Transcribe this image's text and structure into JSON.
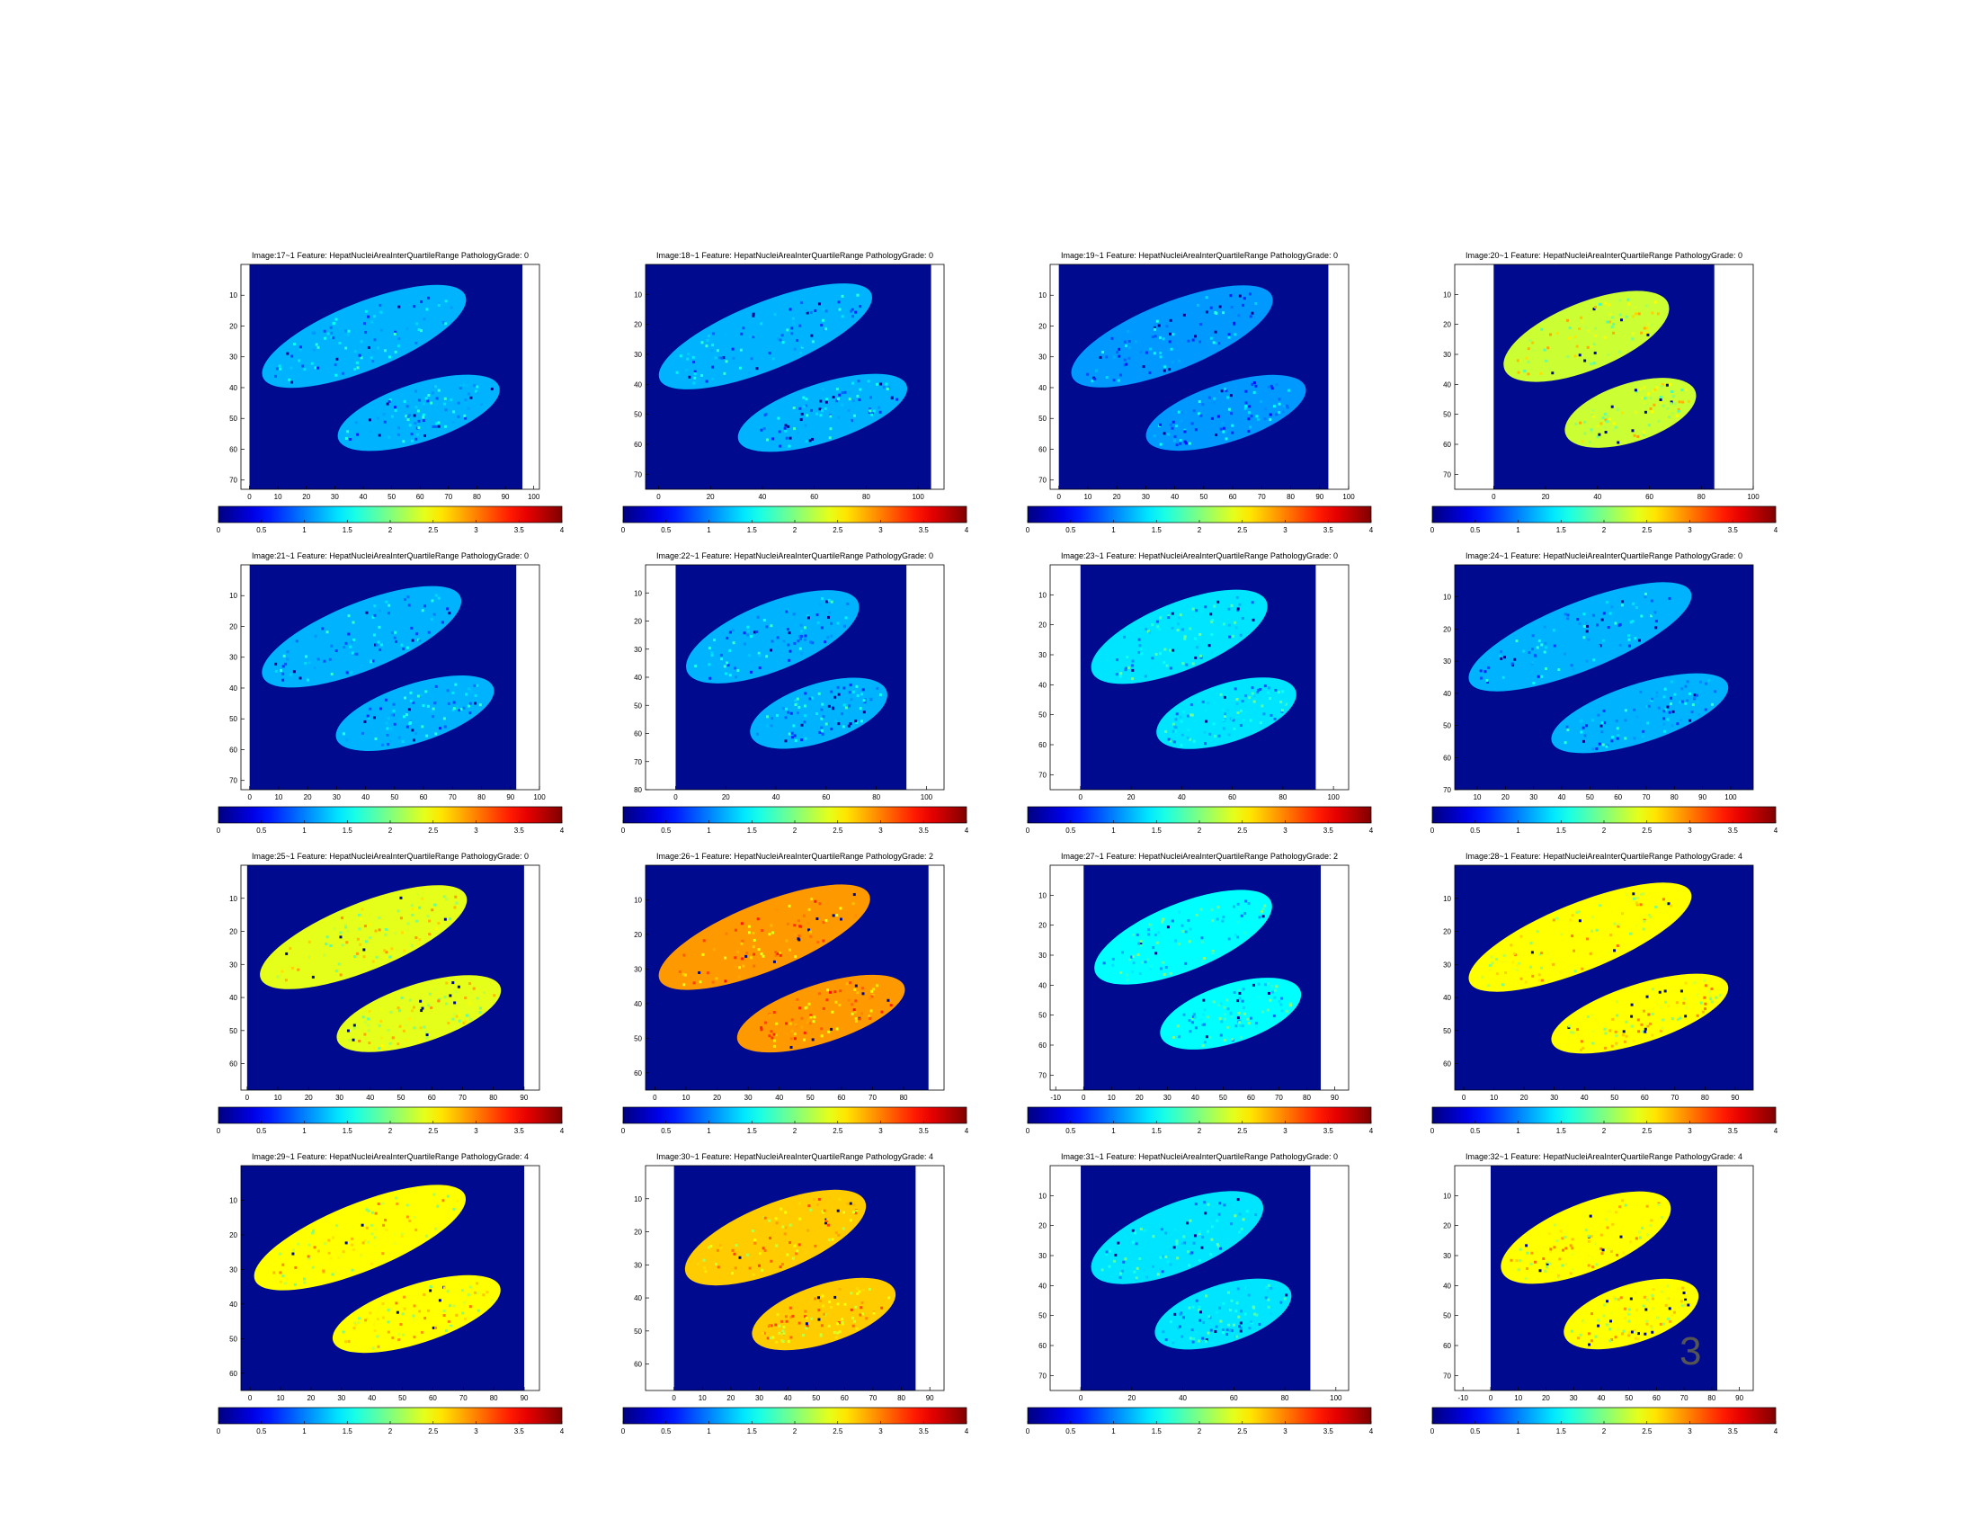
{
  "page_number": "3",
  "colors": {
    "background_blue": "#000a8f",
    "axes": "#000000"
  },
  "colorbar_ticks": [
    "0",
    "0.5",
    "1",
    "1.5",
    "2",
    "2.5",
    "3",
    "3.5",
    "4"
  ],
  "chart_data": [
    {
      "type": "heatmap",
      "title": "Image:17~1     Feature: HepatNucleiAreaInterQuartileRange  PathologyGrade: 0",
      "x_ticks": [
        "0",
        "10",
        "20",
        "30",
        "40",
        "50",
        "60",
        "70",
        "80",
        "90",
        "100"
      ],
      "y_ticks": [
        "10",
        "20",
        "30",
        "40",
        "50",
        "60",
        "70"
      ],
      "xlim": [
        -3,
        102
      ],
      "ylim": [
        0,
        73
      ],
      "data_xlim": [
        0,
        96
      ],
      "clim": [
        0,
        4
      ],
      "pathology_grade": 0,
      "dominant_value": 1.2
    },
    {
      "type": "heatmap",
      "title": "Image:18~1     Feature: HepatNucleiAreaInterQuartileRange  PathologyGrade: 0",
      "x_ticks": [
        "0",
        "20",
        "40",
        "60",
        "80",
        "100"
      ],
      "y_ticks": [
        "10",
        "20",
        "30",
        "40",
        "50",
        "60",
        "70"
      ],
      "xlim": [
        -5,
        110
      ],
      "ylim": [
        0,
        75
      ],
      "data_xlim": [
        -5,
        105
      ],
      "clim": [
        0,
        4
      ],
      "pathology_grade": 0,
      "dominant_value": 1.2
    },
    {
      "type": "heatmap",
      "title": "Image:19~1     Feature: HepatNucleiAreaInterQuartileRange  PathologyGrade: 0",
      "x_ticks": [
        "0",
        "10",
        "20",
        "30",
        "40",
        "50",
        "60",
        "70",
        "80",
        "90",
        "100"
      ],
      "y_ticks": [
        "10",
        "20",
        "30",
        "40",
        "50",
        "60",
        "70"
      ],
      "xlim": [
        -3,
        100
      ],
      "ylim": [
        0,
        73
      ],
      "data_xlim": [
        0,
        93
      ],
      "clim": [
        0,
        4
      ],
      "pathology_grade": 0,
      "dominant_value": 1.1
    },
    {
      "type": "heatmap",
      "title": "Image:20~1     Feature: HepatNucleiAreaInterQuartileRange  PathologyGrade: 0",
      "x_ticks": [
        "0",
        "20",
        "40",
        "60",
        "80",
        "100"
      ],
      "y_ticks": [
        "10",
        "20",
        "30",
        "40",
        "50",
        "60",
        "70"
      ],
      "xlim": [
        -15,
        100
      ],
      "ylim": [
        0,
        75
      ],
      "data_xlim": [
        0,
        85
      ],
      "clim": [
        0,
        4
      ],
      "pathology_grade": 0,
      "dominant_value": 2.3
    },
    {
      "type": "heatmap",
      "title": "Image:21~1     Feature: HepatNucleiAreaInterQuartileRange  PathologyGrade: 0",
      "x_ticks": [
        "0",
        "10",
        "20",
        "30",
        "40",
        "50",
        "60",
        "70",
        "80",
        "90",
        "100"
      ],
      "y_ticks": [
        "10",
        "20",
        "30",
        "40",
        "50",
        "60",
        "70"
      ],
      "xlim": [
        -3,
        100
      ],
      "ylim": [
        0,
        73
      ],
      "data_xlim": [
        0,
        92
      ],
      "clim": [
        0,
        4
      ],
      "pathology_grade": 0,
      "dominant_value": 1.2
    },
    {
      "type": "heatmap",
      "title": "Image:22~1     Feature: HepatNucleiAreaInterQuartileRange  PathologyGrade: 0",
      "x_ticks": [
        "0",
        "20",
        "40",
        "60",
        "80",
        "100"
      ],
      "y_ticks": [
        "10",
        "20",
        "30",
        "40",
        "50",
        "60",
        "70",
        "80"
      ],
      "xlim": [
        -12,
        107
      ],
      "ylim": [
        0,
        80
      ],
      "data_xlim": [
        0,
        92
      ],
      "clim": [
        0,
        4
      ],
      "pathology_grade": 0,
      "dominant_value": 1.2
    },
    {
      "type": "heatmap",
      "title": "Image:23~1     Feature: HepatNucleiAreaInterQuartileRange  PathologyGrade: 0",
      "x_ticks": [
        "0",
        "20",
        "40",
        "60",
        "80",
        "100"
      ],
      "y_ticks": [
        "10",
        "20",
        "30",
        "40",
        "50",
        "60",
        "70"
      ],
      "xlim": [
        -12,
        106
      ],
      "ylim": [
        0,
        75
      ],
      "data_xlim": [
        0,
        93
      ],
      "clim": [
        0,
        4
      ],
      "pathology_grade": 0,
      "dominant_value": 1.4
    },
    {
      "type": "heatmap",
      "title": "Image:24~1     Feature: HepatNucleiAreaInterQuartileRange  PathologyGrade: 0",
      "x_ticks": [
        "10",
        "20",
        "30",
        "40",
        "50",
        "60",
        "70",
        "80",
        "90",
        "100"
      ],
      "y_ticks": [
        "10",
        "20",
        "30",
        "40",
        "50",
        "60",
        "70"
      ],
      "xlim": [
        2,
        108
      ],
      "ylim": [
        0,
        70
      ],
      "data_xlim": [
        2,
        108
      ],
      "clim": [
        0,
        4
      ],
      "pathology_grade": 0,
      "dominant_value": 1.2
    },
    {
      "type": "heatmap",
      "title": "Image:25~1     Feature: HepatNucleiAreaInterQuartileRange  PathologyGrade: 0",
      "x_ticks": [
        "0",
        "10",
        "20",
        "30",
        "40",
        "50",
        "60",
        "70",
        "80",
        "90"
      ],
      "y_ticks": [
        "10",
        "20",
        "30",
        "40",
        "50",
        "60"
      ],
      "xlim": [
        -2,
        95
      ],
      "ylim": [
        0,
        68
      ],
      "data_xlim": [
        0,
        90
      ],
      "clim": [
        0,
        4
      ],
      "pathology_grade": 0,
      "dominant_value": 2.4
    },
    {
      "type": "heatmap",
      "title": "Image:26~1     Feature: HepatNucleiAreaInterQuartileRange  PathologyGrade: 2",
      "x_ticks": [
        "0",
        "10",
        "20",
        "30",
        "40",
        "50",
        "60",
        "70",
        "80"
      ],
      "y_ticks": [
        "10",
        "20",
        "30",
        "40",
        "50",
        "60"
      ],
      "xlim": [
        -3,
        93
      ],
      "ylim": [
        0,
        65
      ],
      "data_xlim": [
        -3,
        88
      ],
      "clim": [
        0,
        4
      ],
      "pathology_grade": 2,
      "dominant_value": 2.9
    },
    {
      "type": "heatmap",
      "title": "Image:27~1     Feature: HepatNucleiAreaInterQuartileRange  PathologyGrade: 2",
      "x_ticks": [
        "-10",
        "0",
        "10",
        "20",
        "30",
        "40",
        "50",
        "60",
        "70",
        "80",
        "90"
      ],
      "y_ticks": [
        "10",
        "20",
        "30",
        "40",
        "50",
        "60",
        "70"
      ],
      "xlim": [
        -12,
        95
      ],
      "ylim": [
        0,
        75
      ],
      "data_xlim": [
        0,
        85
      ],
      "clim": [
        0,
        4
      ],
      "pathology_grade": 2,
      "dominant_value": 1.5
    },
    {
      "type": "heatmap",
      "title": "Image:28~1     Feature: HepatNucleiAreaInterQuartileRange  PathologyGrade: 4",
      "x_ticks": [
        "0",
        "10",
        "20",
        "30",
        "40",
        "50",
        "60",
        "70",
        "80",
        "90"
      ],
      "y_ticks": [
        "10",
        "20",
        "30",
        "40",
        "50",
        "60"
      ],
      "xlim": [
        -3,
        96
      ],
      "ylim": [
        0,
        68
      ],
      "data_xlim": [
        -3,
        96
      ],
      "clim": [
        0,
        4
      ],
      "pathology_grade": 4,
      "dominant_value": 2.5
    },
    {
      "type": "heatmap",
      "title": "Image:29~1     Feature: HepatNucleiAreaInterQuartileRange  PathologyGrade: 4",
      "x_ticks": [
        "0",
        "10",
        "20",
        "30",
        "40",
        "50",
        "60",
        "70",
        "80",
        "90"
      ],
      "y_ticks": [
        "10",
        "20",
        "30",
        "40",
        "50",
        "60"
      ],
      "xlim": [
        -3,
        95
      ],
      "ylim": [
        0,
        65
      ],
      "data_xlim": [
        -3,
        90
      ],
      "clim": [
        0,
        4
      ],
      "pathology_grade": 4,
      "dominant_value": 2.5
    },
    {
      "type": "heatmap",
      "title": "Image:30~1     Feature: HepatNucleiAreaInterQuartileRange  PathologyGrade: 4",
      "x_ticks": [
        "0",
        "10",
        "20",
        "30",
        "40",
        "50",
        "60",
        "70",
        "80",
        "90"
      ],
      "y_ticks": [
        "10",
        "20",
        "30",
        "40",
        "50",
        "60"
      ],
      "xlim": [
        -10,
        95
      ],
      "ylim": [
        0,
        68
      ],
      "data_xlim": [
        0,
        85
      ],
      "clim": [
        0,
        4
      ],
      "pathology_grade": 4,
      "dominant_value": 2.7
    },
    {
      "type": "heatmap",
      "title": "Image:31~1     Feature: HepatNucleiAreaInterQuartileRange  PathologyGrade: 0",
      "x_ticks": [
        "0",
        "20",
        "40",
        "60",
        "80",
        "100"
      ],
      "y_ticks": [
        "10",
        "20",
        "30",
        "40",
        "50",
        "60",
        "70"
      ],
      "xlim": [
        -12,
        105
      ],
      "ylim": [
        0,
        75
      ],
      "data_xlim": [
        0,
        90
      ],
      "clim": [
        0,
        4
      ],
      "pathology_grade": 0,
      "dominant_value": 1.4
    },
    {
      "type": "heatmap",
      "title": "Image:32~1     Feature: HepatNucleiAreaInterQuartileRange  PathologyGrade: 4",
      "x_ticks": [
        "-10",
        "0",
        "10",
        "20",
        "30",
        "40",
        "50",
        "60",
        "70",
        "80",
        "90"
      ],
      "y_ticks": [
        "10",
        "20",
        "30",
        "40",
        "50",
        "60",
        "70"
      ],
      "xlim": [
        -13,
        95
      ],
      "ylim": [
        0,
        75
      ],
      "data_xlim": [
        0,
        82
      ],
      "clim": [
        0,
        4
      ],
      "pathology_grade": 4,
      "dominant_value": 2.5
    }
  ]
}
